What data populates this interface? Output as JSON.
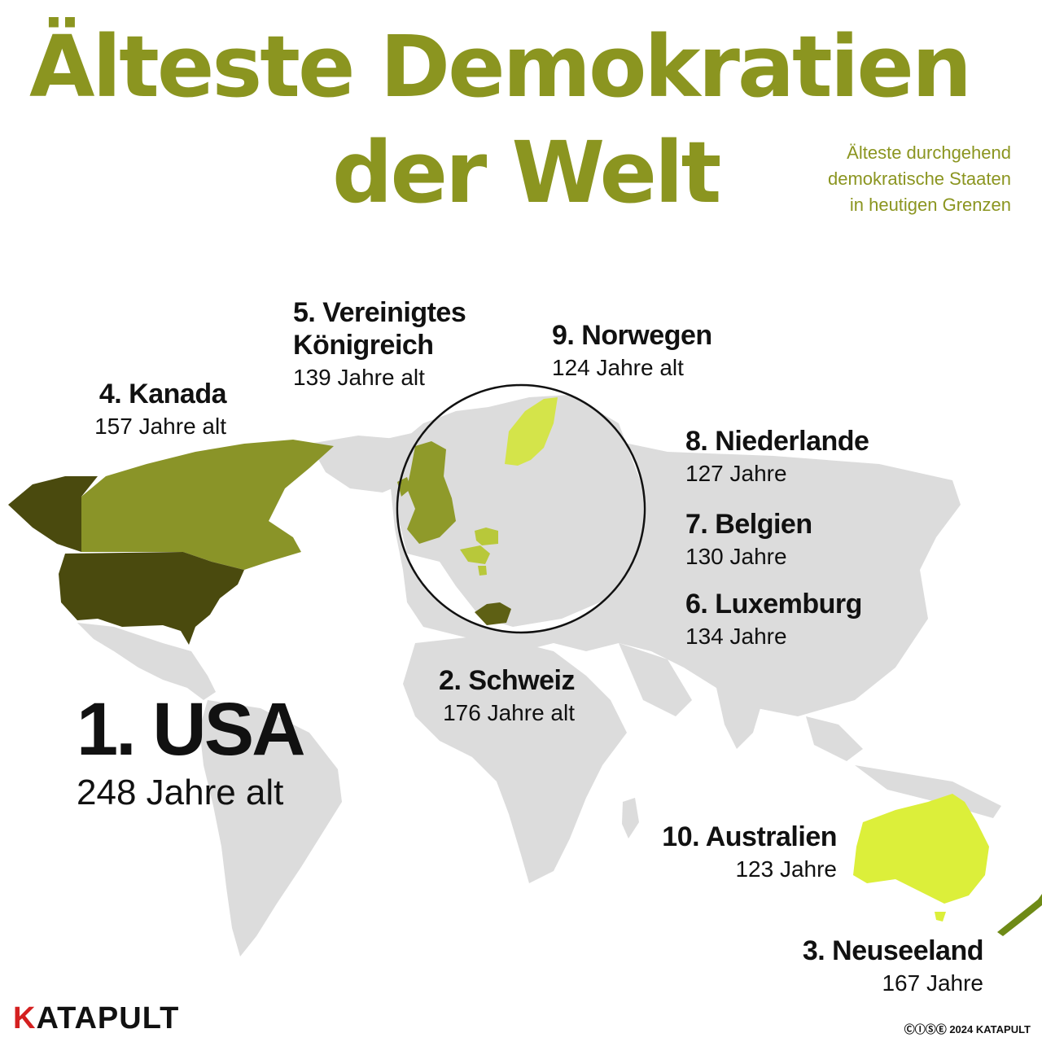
{
  "header": {
    "title_line1": "Älteste Demokratien",
    "title_line2": "der Welt",
    "subtitle_lines": [
      "Älteste durchgehend",
      "demokratische Staaten",
      "in heutigen Grenzen"
    ]
  },
  "colors": {
    "title": "#8b9520",
    "land": "#dcdcdc",
    "rank_1_usa": "#4a4a0e",
    "rank_2_schweiz": "#5e6014",
    "rank_3_neuseeland": "#6e8a16",
    "rank_4_kanada": "#8a9428",
    "rank_5_uk": "#8f9a2a",
    "rank_6_8_benelux": "#b8c83a",
    "rank_9_norwegen": "#d4e44a",
    "rank_10_australien": "#dcef3a",
    "logo_accent": "#d42020"
  },
  "rankings": [
    {
      "rank": 1,
      "name": "1. USA",
      "age": "248 Jahre alt"
    },
    {
      "rank": 2,
      "name": "2. Schweiz",
      "age": "176 Jahre alt"
    },
    {
      "rank": 3,
      "name": "3. Neuseeland",
      "age": "167 Jahre"
    },
    {
      "rank": 4,
      "name": "4. Kanada",
      "age": "157 Jahre alt"
    },
    {
      "rank": 5,
      "name_line1": "5. Vereinigtes",
      "name_line2": "Königreich",
      "age": "139 Jahre alt"
    },
    {
      "rank": 6,
      "name": "6. Luxemburg",
      "age": "134 Jahre"
    },
    {
      "rank": 7,
      "name": "7. Belgien",
      "age": "130 Jahre"
    },
    {
      "rank": 8,
      "name": "8. Niederlande",
      "age": "127 Jahre"
    },
    {
      "rank": 9,
      "name": "9. Norwegen",
      "age": "124 Jahre alt"
    },
    {
      "rank": 10,
      "name": "10. Australien",
      "age": "123 Jahre"
    }
  ],
  "footer": {
    "logo_mark": "K",
    "logo_text": "ATAPULT",
    "credit": "ⒸⒾⓈⒺ 2024 KATAPULT"
  }
}
